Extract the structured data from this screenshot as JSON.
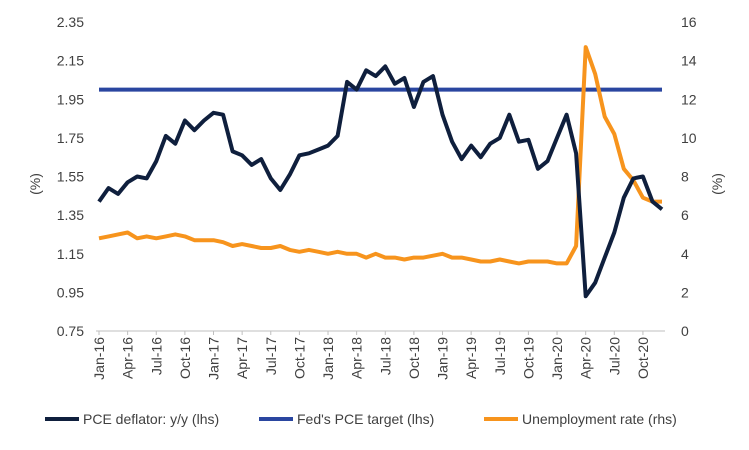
{
  "chart_data": {
    "type": "line",
    "title": "",
    "xlabel": "",
    "ylabel_left": "(%)",
    "ylabel_right": "(%)",
    "ylim_left": [
      0.75,
      2.35
    ],
    "yticks_left": [
      "0.75",
      "0.95",
      "1.15",
      "1.35",
      "1.55",
      "1.75",
      "1.95",
      "2.15",
      "2.35"
    ],
    "ylim_right": [
      0,
      16
    ],
    "yticks_right": [
      "0",
      "2",
      "4",
      "6",
      "8",
      "10",
      "12",
      "14",
      "16"
    ],
    "grid": false,
    "legend_position": "bottom",
    "x_tick_labels": [
      "Jan-16",
      "Apr-16",
      "Jul-16",
      "Oct-16",
      "Jan-17",
      "Apr-17",
      "Jul-17",
      "Oct-17",
      "Jan-18",
      "Apr-18",
      "Jul-18",
      "Oct-18",
      "Jan-19",
      "Apr-19",
      "Jul-19",
      "Oct-19",
      "Jan-20",
      "Apr-20",
      "Jul-20",
      "Oct-20"
    ],
    "x_tick_every_months": 3,
    "n_months": 60,
    "series": [
      {
        "name": "PCE deflator: y/y (lhs)",
        "axis": "left",
        "color": "#0f1f3d",
        "values": [
          1.42,
          1.49,
          1.46,
          1.52,
          1.55,
          1.54,
          1.63,
          1.76,
          1.72,
          1.84,
          1.79,
          1.84,
          1.88,
          1.87,
          1.68,
          1.66,
          1.61,
          1.64,
          1.54,
          1.48,
          1.56,
          1.66,
          1.67,
          1.69,
          1.71,
          1.76,
          2.04,
          2.0,
          2.1,
          2.07,
          2.12,
          2.03,
          2.06,
          1.91,
          2.04,
          2.07,
          1.87,
          1.73,
          1.64,
          1.71,
          1.65,
          1.72,
          1.75,
          1.87,
          1.73,
          1.74,
          1.59,
          1.63,
          1.75,
          1.87,
          1.67,
          0.93,
          1.0,
          1.13,
          1.26,
          1.44,
          1.54,
          1.55,
          1.42,
          1.38
        ]
      },
      {
        "name": "Fed's PCE target (lhs)",
        "axis": "left",
        "color": "#2a46a0",
        "values": [
          2.0,
          2.0,
          2.0,
          2.0,
          2.0,
          2.0,
          2.0,
          2.0,
          2.0,
          2.0,
          2.0,
          2.0,
          2.0,
          2.0,
          2.0,
          2.0,
          2.0,
          2.0,
          2.0,
          2.0,
          2.0,
          2.0,
          2.0,
          2.0,
          2.0,
          2.0,
          2.0,
          2.0,
          2.0,
          2.0,
          2.0,
          2.0,
          2.0,
          2.0,
          2.0,
          2.0,
          2.0,
          2.0,
          2.0,
          2.0,
          2.0,
          2.0,
          2.0,
          2.0,
          2.0,
          2.0,
          2.0,
          2.0,
          2.0,
          2.0,
          2.0,
          2.0,
          2.0,
          2.0,
          2.0,
          2.0,
          2.0,
          2.0,
          2.0,
          2.0
        ]
      },
      {
        "name": "Unemployment rate (rhs)",
        "axis": "right",
        "color": "#f7941d",
        "values": [
          4.8,
          4.9,
          5.0,
          5.1,
          4.8,
          4.9,
          4.8,
          4.9,
          5.0,
          4.9,
          4.7,
          4.7,
          4.7,
          4.6,
          4.4,
          4.5,
          4.4,
          4.3,
          4.3,
          4.4,
          4.2,
          4.1,
          4.2,
          4.1,
          4.0,
          4.1,
          4.0,
          4.0,
          3.8,
          4.0,
          3.8,
          3.8,
          3.7,
          3.8,
          3.8,
          3.9,
          4.0,
          3.8,
          3.8,
          3.7,
          3.6,
          3.6,
          3.7,
          3.6,
          3.5,
          3.6,
          3.6,
          3.6,
          3.5,
          3.5,
          4.4,
          14.7,
          13.3,
          11.1,
          10.2,
          8.4,
          7.8,
          6.9,
          6.7,
          6.7
        ]
      }
    ]
  }
}
